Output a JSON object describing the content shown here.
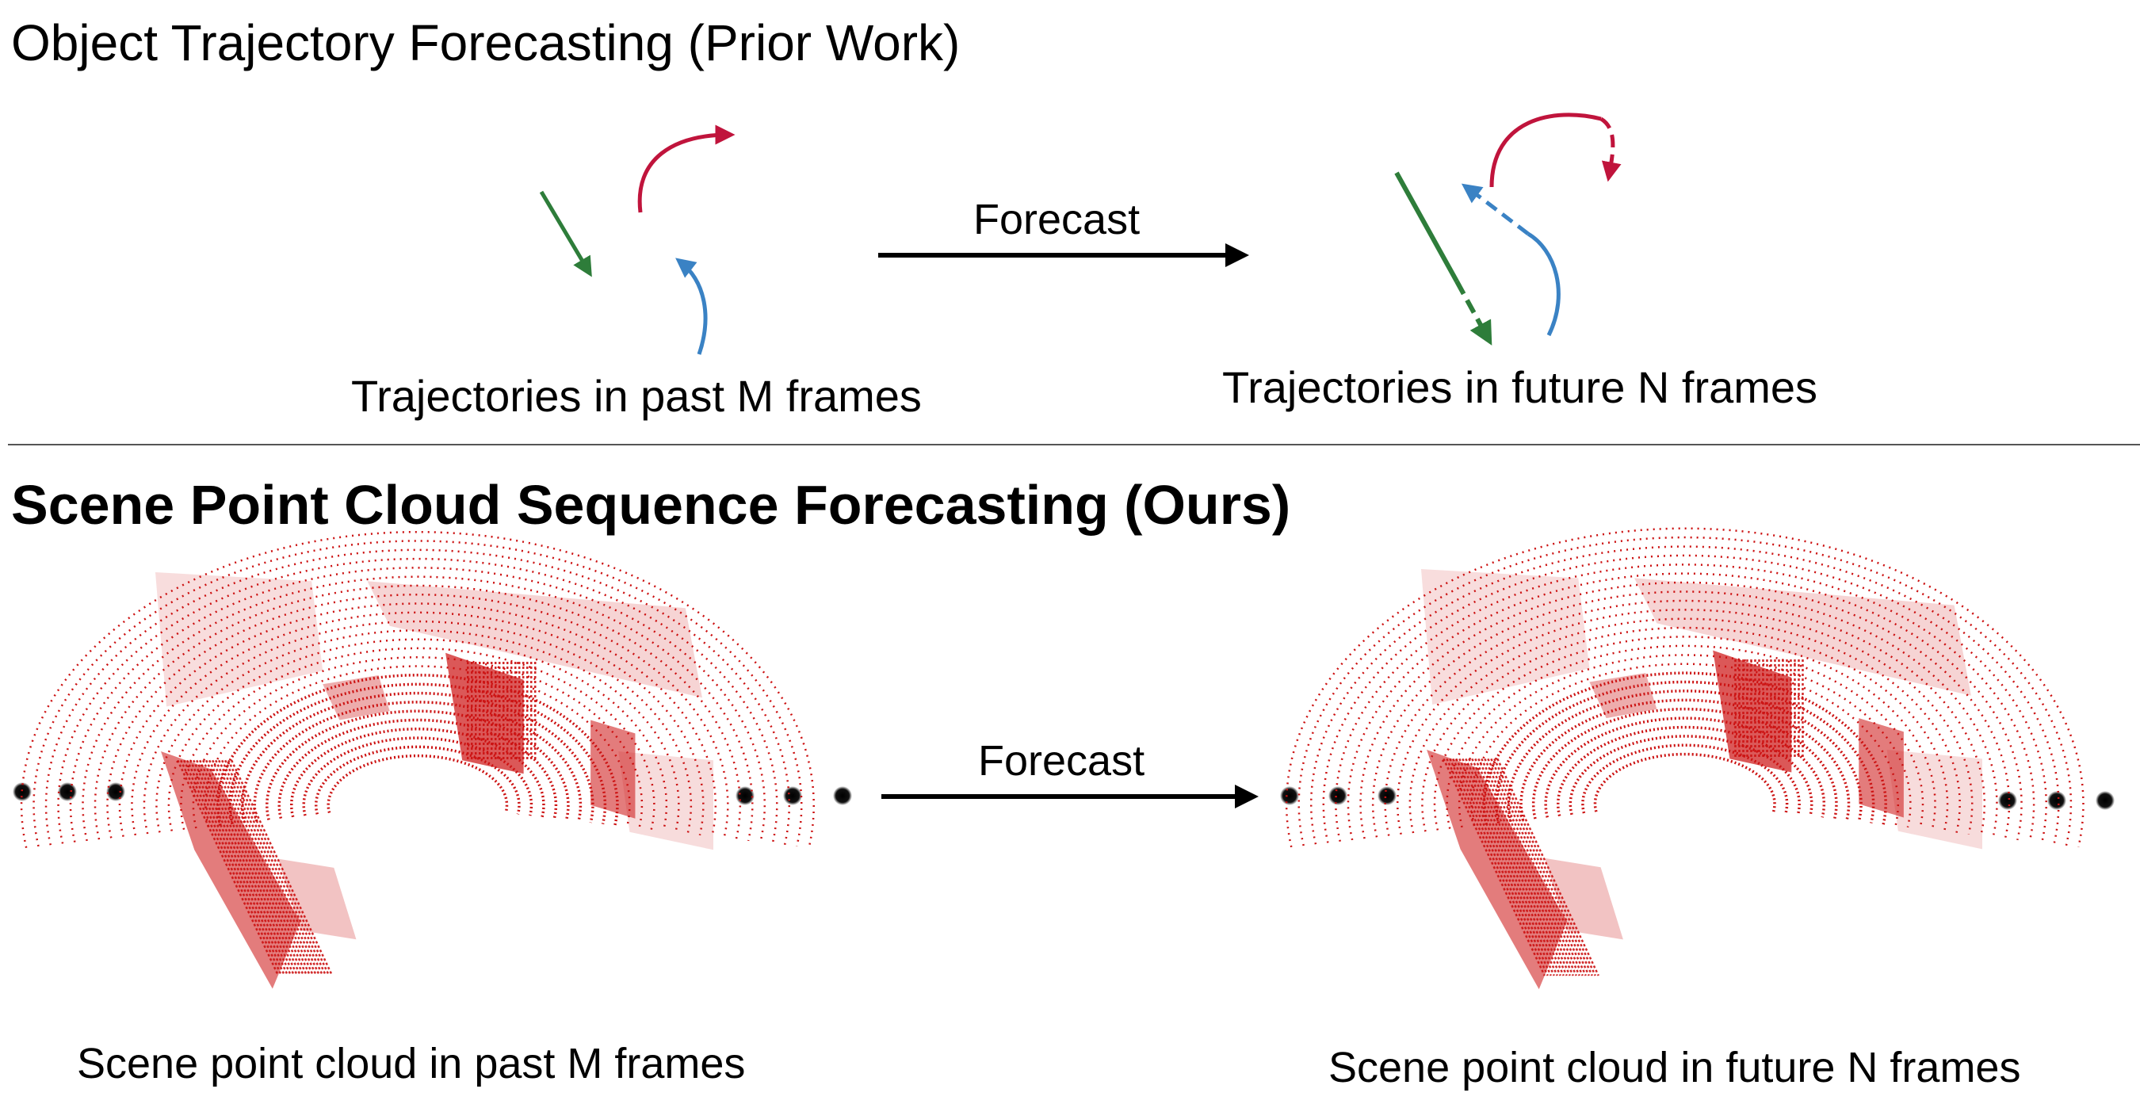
{
  "top_section": {
    "title": "Object Trajectory Forecasting (Prior Work)",
    "past_label": "Trajectories in past M frames",
    "forecast_label": "Forecast",
    "future_label": "Trajectories in future N frames"
  },
  "bottom_section": {
    "title": "Scene Point Cloud Sequence Forecasting (Ours)",
    "forecast_label": "Forecast",
    "past_label": "Scene point cloud in past M frames",
    "future_label": "Scene point cloud in future N frames"
  },
  "colors": {
    "trajectory_red": "#c0143c",
    "trajectory_green": "#2e7d3a",
    "trajectory_blue": "#3a82c4",
    "point_cloud": "#cc1111",
    "arrow": "#000000",
    "divider": "#555555"
  }
}
